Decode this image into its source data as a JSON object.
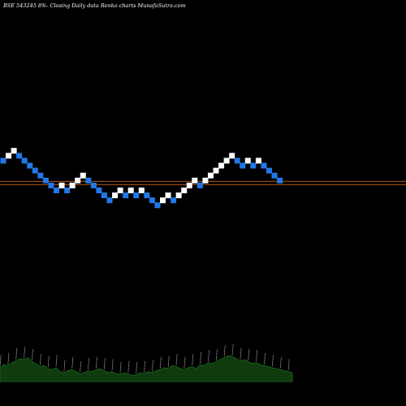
{
  "title": "BSE 543245 8%-  Closing Daily data  Renko  charts MunafaSutra.com",
  "colors": {
    "background": "#000000",
    "up_brick": "#ffffff",
    "down_brick": "#2178e8",
    "reference_line": "#c8601a",
    "volume_fill": "#0f3b0f",
    "volume_stroke": "#1f6a1f",
    "volume_label": "#ffffff"
  },
  "chart_data": {
    "type": "renko",
    "title": "BSE 543245 8%-  Closing Daily data  Renko  charts MunafaSutra.com",
    "bricks": [
      {
        "level": 11,
        "direction": "down"
      },
      {
        "level": 12,
        "direction": "up"
      },
      {
        "level": 13,
        "direction": "up"
      },
      {
        "level": 12,
        "direction": "down"
      },
      {
        "level": 11,
        "direction": "down"
      },
      {
        "level": 10,
        "direction": "down"
      },
      {
        "level": 9,
        "direction": "down"
      },
      {
        "level": 8,
        "direction": "down"
      },
      {
        "level": 7,
        "direction": "down"
      },
      {
        "level": 6,
        "direction": "down"
      },
      {
        "level": 5,
        "direction": "down"
      },
      {
        "level": 6,
        "direction": "up"
      },
      {
        "level": 5,
        "direction": "down"
      },
      {
        "level": 6,
        "direction": "up"
      },
      {
        "level": 7,
        "direction": "up"
      },
      {
        "level": 8,
        "direction": "up"
      },
      {
        "level": 7,
        "direction": "down"
      },
      {
        "level": 6,
        "direction": "down"
      },
      {
        "level": 5,
        "direction": "down"
      },
      {
        "level": 4,
        "direction": "down"
      },
      {
        "level": 3,
        "direction": "down"
      },
      {
        "level": 4,
        "direction": "up"
      },
      {
        "level": 5,
        "direction": "up"
      },
      {
        "level": 4,
        "direction": "down"
      },
      {
        "level": 5,
        "direction": "up"
      },
      {
        "level": 4,
        "direction": "down"
      },
      {
        "level": 5,
        "direction": "up"
      },
      {
        "level": 4,
        "direction": "down"
      },
      {
        "level": 3,
        "direction": "down"
      },
      {
        "level": 2,
        "direction": "down"
      },
      {
        "level": 3,
        "direction": "up"
      },
      {
        "level": 4,
        "direction": "up"
      },
      {
        "level": 3,
        "direction": "down"
      },
      {
        "level": 4,
        "direction": "up"
      },
      {
        "level": 5,
        "direction": "up"
      },
      {
        "level": 6,
        "direction": "up"
      },
      {
        "level": 7,
        "direction": "up"
      },
      {
        "level": 6,
        "direction": "down"
      },
      {
        "level": 7,
        "direction": "up"
      },
      {
        "level": 8,
        "direction": "up"
      },
      {
        "level": 9,
        "direction": "up"
      },
      {
        "level": 10,
        "direction": "up"
      },
      {
        "level": 11,
        "direction": "up"
      },
      {
        "level": 12,
        "direction": "up"
      },
      {
        "level": 11,
        "direction": "down"
      },
      {
        "level": 10,
        "direction": "down"
      },
      {
        "level": 11,
        "direction": "up"
      },
      {
        "level": 10,
        "direction": "down"
      },
      {
        "level": 11,
        "direction": "up"
      },
      {
        "level": 10,
        "direction": "down"
      },
      {
        "level": 9,
        "direction": "down"
      },
      {
        "level": 8,
        "direction": "down"
      },
      {
        "level": 7,
        "direction": "down"
      }
    ],
    "reference_level": 6.5,
    "volume_profile": [
      14,
      17,
      16,
      19,
      21,
      23,
      22,
      24,
      20,
      18,
      15,
      16,
      13,
      12,
      14,
      10,
      9,
      11,
      12,
      10,
      8,
      9,
      11,
      10,
      12,
      13,
      11,
      9,
      10,
      8,
      7,
      9,
      8,
      6,
      7,
      9,
      8,
      10,
      9,
      11,
      12,
      14,
      13,
      16,
      15,
      13,
      12,
      14,
      15,
      13,
      17,
      16,
      19,
      18,
      20,
      22,
      24,
      26,
      25,
      23,
      21,
      22,
      20,
      18,
      19,
      17,
      16,
      15,
      14,
      13,
      12,
      11,
      10,
      9
    ]
  }
}
